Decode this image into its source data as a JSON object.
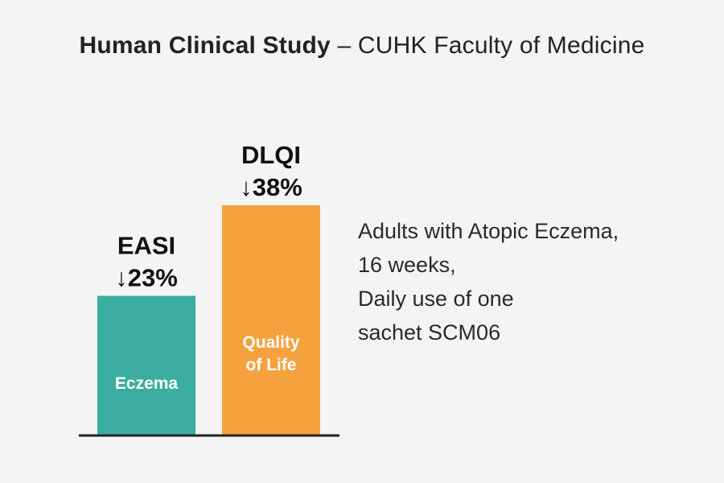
{
  "title": {
    "bold": "Human Clinical Study",
    "dash": " – ",
    "rest": "CUHK Faculty of Medicine"
  },
  "chart_data": {
    "type": "bar",
    "categories": [
      "EASI",
      "DLQI"
    ],
    "series": [
      {
        "values": [
          23,
          38
        ]
      }
    ],
    "value_labels": [
      "↓23%",
      "↓38%"
    ],
    "bar_labels": [
      [
        "Eczema"
      ],
      [
        "Quality",
        "of Life"
      ]
    ],
    "colors": [
      "#3aada0",
      "#f5a23e"
    ],
    "ylim": [
      0,
      40
    ],
    "grid": false,
    "legend": "none"
  },
  "description": {
    "lines": [
      "Adults with Atopic Eczema,",
      "16 weeks,",
      "Daily use of one",
      "sachet SCM06"
    ]
  }
}
